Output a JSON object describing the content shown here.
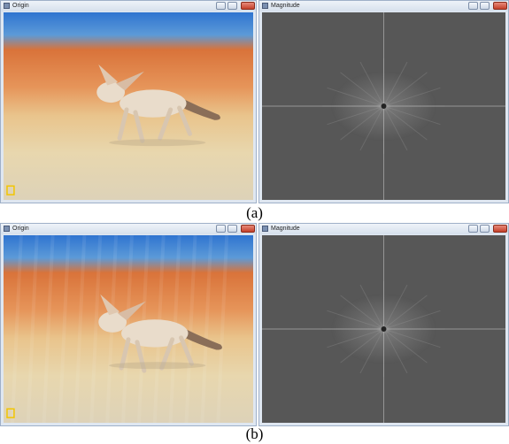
{
  "panels": [
    {
      "windows": [
        {
          "title": "Origin"
        },
        {
          "title": "Magnitude"
        }
      ],
      "caption": "(a)"
    },
    {
      "windows": [
        {
          "title": "Origin"
        },
        {
          "title": "Magnitude"
        }
      ],
      "caption": "(b)"
    }
  ]
}
